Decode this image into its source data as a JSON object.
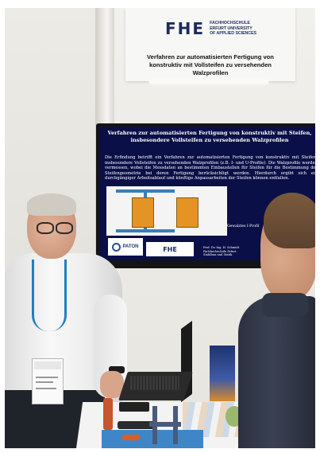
{
  "sign": {
    "logo_mark": "FHE",
    "logo_line1": "FACHHOCHSCHULE",
    "logo_line2": "ERFURT UNIVERSITY",
    "logo_line3": "OF APPLIED SCIENCES",
    "title": "Verfahren zur automatisierten Fertigung von konstruktiv mit Vollsteifen zu versehenden Walzprofilen"
  },
  "screen": {
    "title": "Verfahren zur automatisierten Fertigung von konstruktiv mit Steifen, insbesondere Vollsteifen zu versehenden Walzprofilen",
    "body": "Die Erfindung betrifft ein Verfahren zur automatisierten Fertigung von konstruktiv mit Steifen, insbesondere Vollsteifen zu versehenden Walzprofilen (z.B. I- und U-Profile). Die Walzprofile werden vermessen, wobei die Messdaten an bestimmten Einbaustellen für Steifen für die Bestimmung der Steifengeometrie bei deren Fertigung berücksichtigt werden. Hierdurch ergibt sich ein durchgängiger Arbeitsablauf und künftige Anpassarbeiten der Steifen können entfallen.",
    "caption": "Gewalztes I-Profil",
    "paton_label": "PATON",
    "fhe_mark": "FHE",
    "author_line1": "Prof. Dr.-Ing. H. Schmidt",
    "author_line2": "Fachhochschule Erfurt",
    "author_line3": "Stahlbau und Statik"
  }
}
